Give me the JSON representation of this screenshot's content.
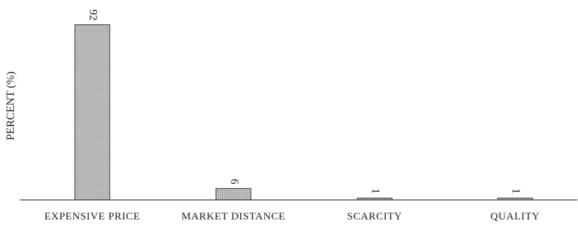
{
  "chart_data": {
    "type": "bar",
    "categories": [
      "EXPENSIVE PRICE",
      "MARKET DISTANCE",
      "SCARCITY",
      "QUALITY"
    ],
    "values": [
      92,
      6,
      1,
      1
    ],
    "data_labels": [
      "92",
      "6",
      "1",
      "1"
    ],
    "title": "",
    "xlabel": "",
    "ylabel": "PERCENT (%)",
    "ylim": [
      0,
      100
    ],
    "grid": false,
    "legend": "none",
    "bar_fill": "dotted gray",
    "bar_color": "#b8b8b8",
    "edge_color": "#333333"
  }
}
